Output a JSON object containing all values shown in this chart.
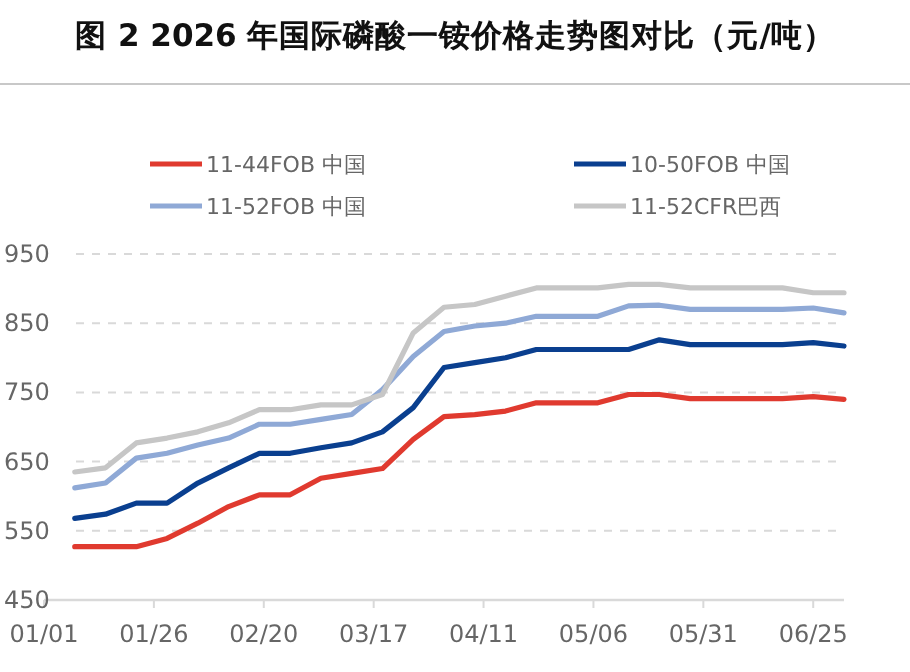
{
  "chart_data": {
    "type": "line",
    "title": "图 2  2026 年国际磷酸一铵价格走势图对比（元/吨）",
    "x": [
      "--01-08",
      "--01-15",
      "--01-22",
      "--01-29",
      "--02-05",
      "--02-12",
      "--02-19",
      "--02-26",
      "--03-05",
      "--03-12",
      "--03-19",
      "--03-26",
      "--04-02",
      "--04-09",
      "--04-16",
      "--04-23",
      "--04-30",
      "--05-07",
      "--05-14",
      "--05-21",
      "--05-28",
      "--06-04",
      "--06-11",
      "--06-18",
      "--06-25",
      "--07-02"
    ],
    "series": [
      {
        "name": "11-44FOB 中国",
        "color": "#e03a2f",
        "values": [
          527,
          527,
          527,
          539,
          561,
          585,
          602,
          602,
          626,
          633,
          640,
          682,
          715,
          718,
          723,
          735,
          735,
          735,
          747,
          747,
          741,
          741,
          741,
          741,
          744,
          740
        ]
      },
      {
        "name": "10-50FOB 中国",
        "color": "#0a3f8f",
        "values": [
          568,
          574,
          590,
          590,
          619,
          641,
          662,
          662,
          670,
          677,
          693,
          728,
          786,
          793,
          800,
          812,
          812,
          812,
          812,
          826,
          819,
          819,
          819,
          819,
          822,
          817
        ]
      },
      {
        "name": "11-52FOB 中国",
        "color": "#8fa9d6",
        "values": [
          612,
          619,
          655,
          662,
          674,
          684,
          704,
          704,
          711,
          718,
          754,
          802,
          838,
          846,
          850,
          860,
          860,
          860,
          875,
          876,
          870,
          870,
          870,
          870,
          872,
          865
        ]
      },
      {
        "name": "11-52CFR巴西",
        "color": "#c6c6c6",
        "values": [
          635,
          641,
          677,
          684,
          693,
          706,
          725,
          725,
          732,
          732,
          747,
          836,
          873,
          877,
          889,
          901,
          901,
          901,
          906,
          906,
          901,
          901,
          901,
          901,
          894,
          894
        ]
      }
    ],
    "xlim": [
      "--01-01",
      "--07-02"
    ],
    "xticks": [
      {
        "value": "--01-01",
        "label": "01/01"
      },
      {
        "value": "--01-26",
        "label": "01/26"
      },
      {
        "value": "--02-20",
        "label": "02/20"
      },
      {
        "value": "--03-17",
        "label": "03/17"
      },
      {
        "value": "--04-11",
        "label": "04/11"
      },
      {
        "value": "--05-06",
        "label": "05/06"
      },
      {
        "value": "--05-31",
        "label": "05/31"
      },
      {
        "value": "--06-25",
        "label": "06/25"
      }
    ],
    "ylim": [
      450,
      950
    ],
    "yticks": [
      450,
      550,
      650,
      750,
      850,
      950
    ],
    "grid": "y",
    "legend": "top",
    "marker": "none",
    "line_style": "solid"
  }
}
